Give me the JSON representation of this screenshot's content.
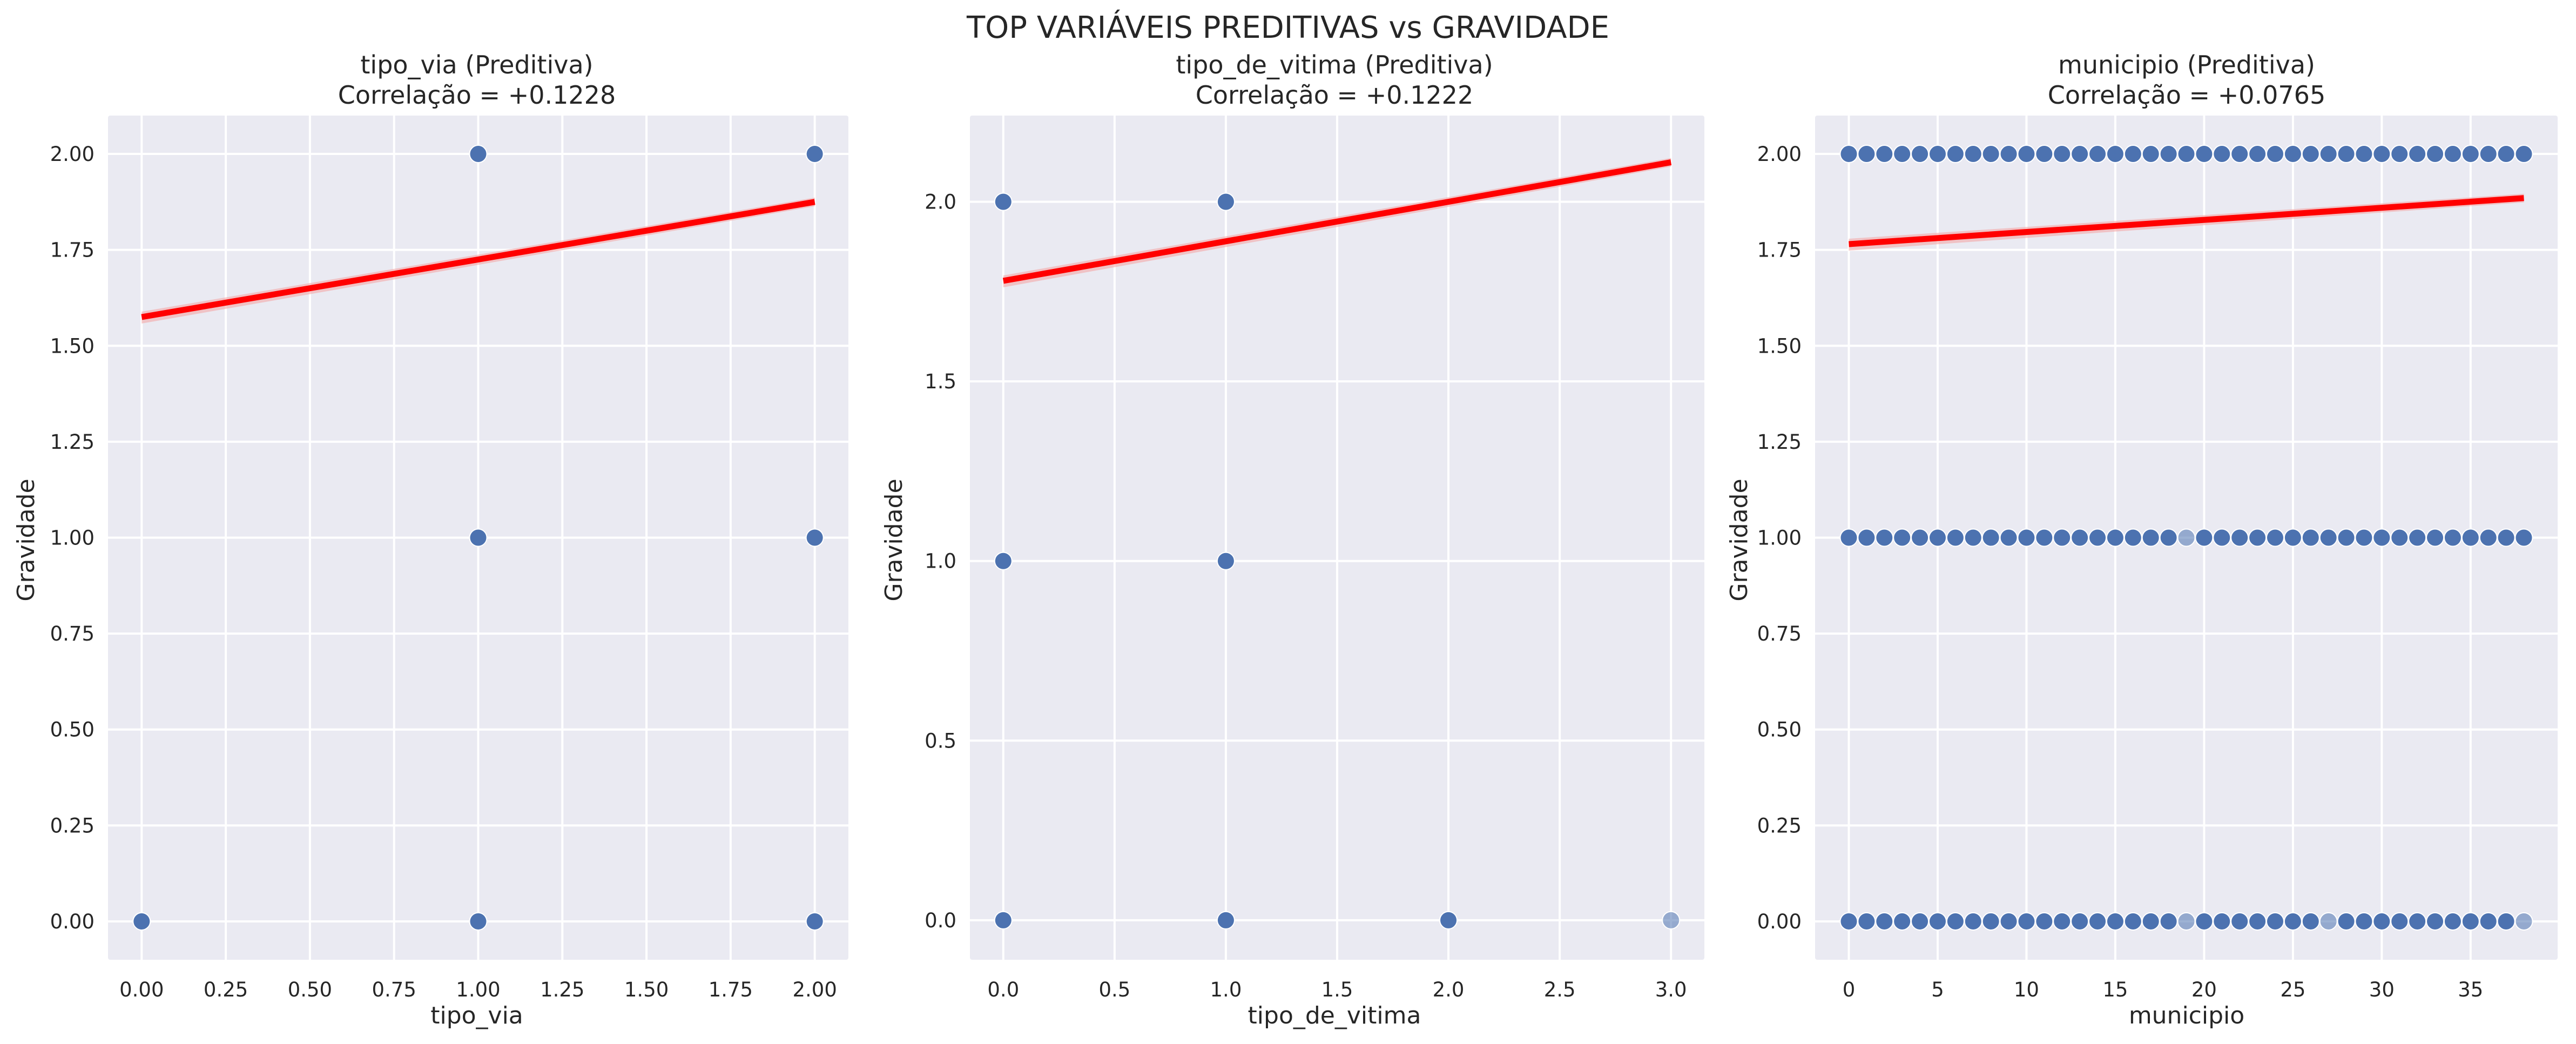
{
  "figure": {
    "suptitle": "TOP VARIÁVEIS PREDITIVAS vs GRAVIDADE",
    "colors": {
      "axes_bg": "#EAEAF2",
      "grid": "#FFFFFF",
      "points": "#4C72B0",
      "regression": "#FF0000",
      "confidence_band": "#F4A6A6"
    }
  },
  "chart_data": [
    {
      "type": "scatter",
      "title_line1": "tipo_via (Preditiva)",
      "title_line2": "Correlação = +0.1228",
      "xlabel": "tipo_via",
      "ylabel": "Gravidade",
      "xlim": [
        -0.1,
        2.1
      ],
      "ylim": [
        -0.1,
        2.1
      ],
      "xticks": [
        0,
        0.25,
        0.5,
        0.75,
        1.0,
        1.25,
        1.5,
        1.75,
        2.0
      ],
      "xtick_labels": [
        "0.00",
        "0.25",
        "0.50",
        "0.75",
        "1.00",
        "1.25",
        "1.50",
        "1.75",
        "2.00"
      ],
      "yticks": [
        0,
        0.25,
        0.5,
        0.75,
        1.0,
        1.25,
        1.5,
        1.75,
        2.0
      ],
      "ytick_labels": [
        "0.00",
        "0.25",
        "0.50",
        "0.75",
        "1.00",
        "1.25",
        "1.50",
        "1.75",
        "2.00"
      ],
      "points": [
        [
          0,
          0
        ],
        [
          1,
          0
        ],
        [
          1,
          1
        ],
        [
          1,
          2
        ],
        [
          2,
          0
        ],
        [
          2,
          1
        ],
        [
          2,
          2
        ]
      ],
      "light_points": [],
      "regression_line": {
        "x": [
          0,
          2
        ],
        "y": [
          1.575,
          1.875
        ]
      },
      "grid": true
    },
    {
      "type": "scatter",
      "title_line1": "tipo_de_vitima (Preditiva)",
      "title_line2": "Correlação = +0.1222",
      "xlabel": "tipo_de_vitima",
      "ylabel": "Gravidade",
      "xlim": [
        -0.15,
        3.15
      ],
      "ylim": [
        -0.11,
        2.24
      ],
      "xticks": [
        0,
        0.5,
        1.0,
        1.5,
        2.0,
        2.5,
        3.0
      ],
      "xtick_labels": [
        "0.0",
        "0.5",
        "1.0",
        "1.5",
        "2.0",
        "2.5",
        "3.0"
      ],
      "yticks": [
        0,
        0.5,
        1.0,
        1.5,
        2.0
      ],
      "ytick_labels": [
        "0.0",
        "0.5",
        "1.0",
        "1.5",
        "2.0"
      ],
      "points": [
        [
          0,
          0
        ],
        [
          0,
          1
        ],
        [
          0,
          2
        ],
        [
          1,
          0
        ],
        [
          1,
          1
        ],
        [
          1,
          2
        ],
        [
          2,
          0
        ]
      ],
      "light_points": [
        [
          3,
          0
        ]
      ],
      "regression_line": {
        "x": [
          0,
          3
        ],
        "y": [
          1.78,
          2.11
        ]
      },
      "grid": true
    },
    {
      "type": "scatter",
      "title_line1": "municipio (Preditiva)",
      "title_line2": "Correlação = +0.0765",
      "xlabel": "municipio",
      "ylabel": "Gravidade",
      "xlim": [
        -1.9,
        39.9
      ],
      "ylim": [
        -0.1,
        2.1
      ],
      "xticks": [
        0,
        5,
        10,
        15,
        20,
        25,
        30,
        35
      ],
      "xtick_labels": [
        "0",
        "5",
        "10",
        "15",
        "20",
        "25",
        "30",
        "35"
      ],
      "yticks": [
        0,
        0.25,
        0.5,
        0.75,
        1.0,
        1.25,
        1.5,
        1.75,
        2.0
      ],
      "ytick_labels": [
        "0.00",
        "0.25",
        "0.50",
        "0.75",
        "1.00",
        "1.25",
        "1.50",
        "1.75",
        "2.00"
      ],
      "point_x_range": [
        0,
        38
      ],
      "point_y_levels": [
        0,
        1,
        2
      ],
      "light_points": [
        [
          19,
          1
        ],
        [
          19,
          0
        ],
        [
          27,
          0
        ],
        [
          38,
          0
        ]
      ],
      "regression_line": {
        "x": [
          0,
          38
        ],
        "y": [
          1.765,
          1.885
        ]
      },
      "grid": true
    }
  ]
}
